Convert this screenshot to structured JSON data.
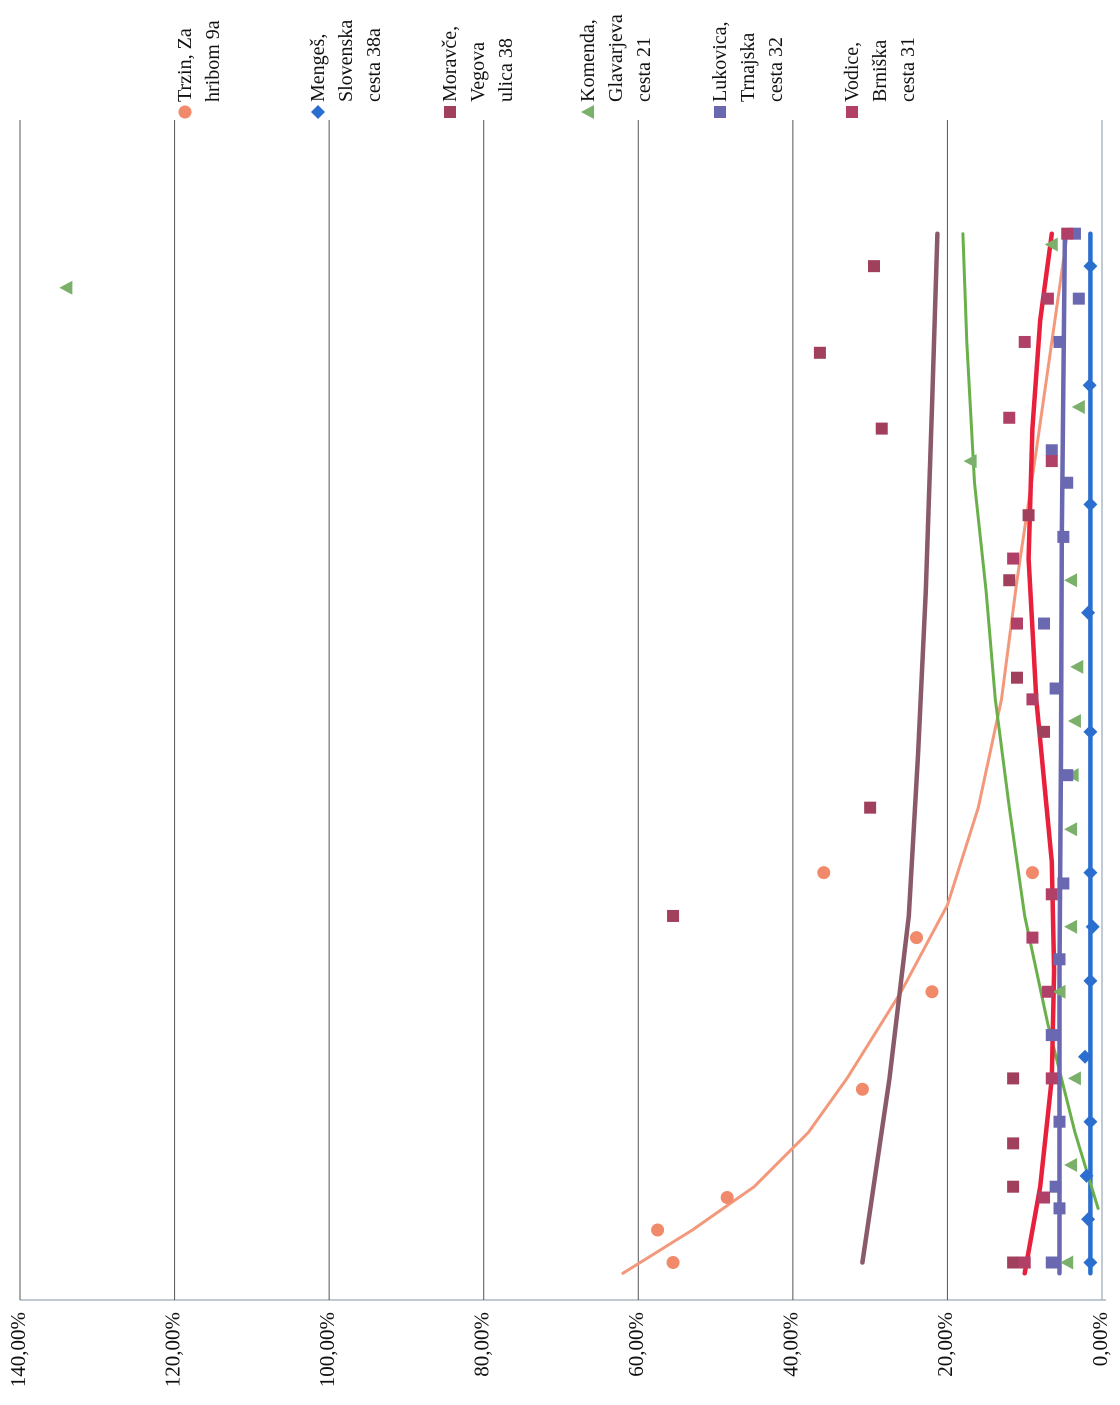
{
  "chart_data": {
    "type": "scatter",
    "title": "",
    "xlabel": "",
    "ylabel": "",
    "y_ticks": [
      "0,00%",
      "20,00%",
      "40,00%",
      "60,00%",
      "80,00%",
      "100,00%",
      "120,00%",
      "140,00%"
    ],
    "ylim": [
      0,
      140
    ],
    "x_range": [
      0,
      1
    ],
    "gridlines": "horizontal",
    "legend_position": "top",
    "series": [
      {
        "name": "Trzin, Za hribom 9a",
        "color": "#f08a6a",
        "marker": "circle",
        "points": [
          [
            0.03,
            55.5
          ],
          [
            0.06,
            57.5
          ],
          [
            0.09,
            48.5
          ],
          [
            0.19,
            31
          ],
          [
            0.28,
            22
          ],
          [
            0.33,
            24
          ],
          [
            0.39,
            36
          ],
          [
            0.39,
            9
          ]
        ],
        "trend": {
          "color": "#f4987c",
          "points": [
            [
              0.02,
              62
            ],
            [
              0.06,
              53
            ],
            [
              0.1,
              45
            ],
            [
              0.15,
              38
            ],
            [
              0.2,
              33
            ],
            [
              0.28,
              26
            ],
            [
              0.36,
              20
            ],
            [
              0.45,
              16
            ],
            [
              0.55,
              13
            ],
            [
              0.66,
              11
            ],
            [
              0.78,
              8.5
            ],
            [
              0.88,
              6.5
            ],
            [
              0.98,
              4.5
            ]
          ]
        }
      },
      {
        "name": "Mengeš, Slovenska cesta 38a",
        "color": "#2a6fcf",
        "marker": "diamond",
        "points": [
          [
            0.03,
            1.5
          ],
          [
            0.07,
            1.8
          ],
          [
            0.11,
            2
          ],
          [
            0.16,
            1.5
          ],
          [
            0.22,
            2.2
          ],
          [
            0.29,
            1.5
          ],
          [
            0.34,
            1.2
          ],
          [
            0.39,
            1.5
          ],
          [
            0.52,
            1.5
          ],
          [
            0.63,
            1.8
          ],
          [
            0.73,
            1.5
          ],
          [
            0.84,
            1.6
          ],
          [
            0.95,
            1.5
          ]
        ],
        "trend": {
          "color": "#2a6fcf",
          "points": [
            [
              0.02,
              1.5
            ],
            [
              0.98,
              1.5
            ]
          ]
        }
      },
      {
        "name": "Moravče, Vegova ulica 38",
        "color": "#a0405c",
        "marker": "square",
        "points": [
          [
            0.03,
            11.5
          ],
          [
            0.1,
            11.5
          ],
          [
            0.14,
            11.5
          ],
          [
            0.2,
            11.5
          ],
          [
            0.35,
            55.5
          ],
          [
            0.45,
            30
          ],
          [
            0.52,
            7.5
          ],
          [
            0.57,
            11
          ],
          [
            0.66,
            12
          ],
          [
            0.72,
            9.5
          ],
          [
            0.8,
            28.5
          ],
          [
            0.87,
            36.5
          ],
          [
            0.95,
            29.5
          ]
        ],
        "trend": {
          "color": "#8a5a68",
          "points": [
            [
              0.03,
              31
            ],
            [
              0.2,
              27.5
            ],
            [
              0.35,
              25
            ],
            [
              0.5,
              23.8
            ],
            [
              0.65,
              22.8
            ],
            [
              0.82,
              22
            ],
            [
              0.98,
              21.3
            ]
          ]
        }
      },
      {
        "name": "Komenda, Glavarjeva cesta 21",
        "color": "#7ab06a",
        "marker": "triangle",
        "points": [
          [
            0.03,
            4.5
          ],
          [
            0.12,
            4
          ],
          [
            0.2,
            3.5
          ],
          [
            0.28,
            5.5
          ],
          [
            0.34,
            4
          ],
          [
            0.43,
            4
          ],
          [
            0.48,
            3.8
          ],
          [
            0.53,
            3.5
          ],
          [
            0.58,
            3.2
          ],
          [
            0.66,
            4
          ],
          [
            0.77,
            17
          ],
          [
            0.82,
            3
          ],
          [
            0.93,
            134
          ],
          [
            0.97,
            6.5
          ]
        ],
        "trend": {
          "color": "#6ab04a",
          "points": [
            [
              0.08,
              0.5
            ],
            [
              0.15,
              3.5
            ],
            [
              0.25,
              7
            ],
            [
              0.35,
              10
            ],
            [
              0.45,
              12
            ],
            [
              0.55,
              13.8
            ],
            [
              0.65,
              15
            ],
            [
              0.75,
              16.5
            ],
            [
              0.88,
              17.5
            ],
            [
              0.98,
              18
            ]
          ]
        }
      },
      {
        "name": "Lukovica, Trnajska cesta 32",
        "color": "#6a68b0",
        "marker": "square",
        "points": [
          [
            0.03,
            6.5
          ],
          [
            0.08,
            5.5
          ],
          [
            0.1,
            6
          ],
          [
            0.16,
            5.5
          ],
          [
            0.24,
            6.5
          ],
          [
            0.31,
            5.5
          ],
          [
            0.38,
            5
          ],
          [
            0.48,
            4.5
          ],
          [
            0.56,
            6
          ],
          [
            0.62,
            7.5
          ],
          [
            0.7,
            5
          ],
          [
            0.75,
            4.5
          ],
          [
            0.78,
            6.5
          ],
          [
            0.88,
            5.5
          ],
          [
            0.92,
            3
          ],
          [
            0.98,
            3.5
          ]
        ],
        "trend": {
          "color": "#6a68b0",
          "points": [
            [
              0.02,
              5.5
            ],
            [
              0.3,
              5.5
            ],
            [
              0.5,
              5.3
            ],
            [
              0.7,
              5.2
            ],
            [
              0.98,
              4.8
            ]
          ]
        }
      },
      {
        "name": "Vodice, Brniška cesta 31",
        "color": "#b04068",
        "marker": "square",
        "points": [
          [
            0.03,
            10
          ],
          [
            0.09,
            7.5
          ],
          [
            0.2,
            6.5
          ],
          [
            0.28,
            7
          ],
          [
            0.33,
            9
          ],
          [
            0.37,
            6.5
          ],
          [
            0.55,
            9
          ],
          [
            0.62,
            11
          ],
          [
            0.68,
            11.5
          ],
          [
            0.77,
            6.5
          ],
          [
            0.81,
            12
          ],
          [
            0.88,
            10
          ],
          [
            0.92,
            7
          ],
          [
            0.98,
            4.5
          ]
        ],
        "trend": {
          "color": "#e8203c",
          "points": [
            [
              0.02,
              10
            ],
            [
              0.1,
              8
            ],
            [
              0.2,
              6.5
            ],
            [
              0.3,
              6.2
            ],
            [
              0.4,
              6.5
            ],
            [
              0.55,
              8.5
            ],
            [
              0.68,
              9.5
            ],
            [
              0.8,
              9
            ],
            [
              0.9,
              8
            ],
            [
              0.98,
              6.5
            ]
          ]
        }
      }
    ]
  }
}
